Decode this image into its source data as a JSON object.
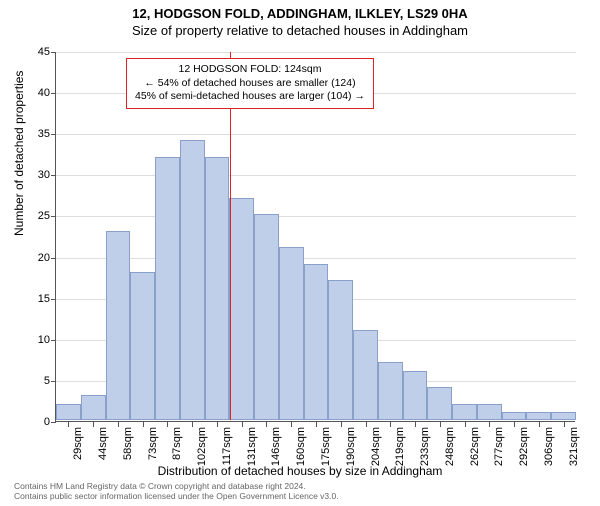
{
  "titles": {
    "line1": "12, HODGSON FOLD, ADDINGHAM, ILKLEY, LS29 0HA",
    "line2": "Size of property relative to detached houses in Addingham"
  },
  "y_axis": {
    "title": "Number of detached properties",
    "min": 0,
    "max": 45,
    "step": 5,
    "ticks": [
      0,
      5,
      10,
      15,
      20,
      25,
      30,
      35,
      40,
      45
    ]
  },
  "x_axis": {
    "title": "Distribution of detached houses by size in Addingham",
    "labels": [
      "29sqm",
      "44sqm",
      "58sqm",
      "73sqm",
      "87sqm",
      "102sqm",
      "117sqm",
      "131sqm",
      "146sqm",
      "160sqm",
      "175sqm",
      "190sqm",
      "204sqm",
      "219sqm",
      "233sqm",
      "248sqm",
      "262sqm",
      "277sqm",
      "292sqm",
      "306sqm",
      "321sqm"
    ]
  },
  "histogram": {
    "type": "histogram",
    "values": [
      2,
      3,
      23,
      18,
      32,
      34,
      32,
      27,
      25,
      21,
      19,
      17,
      11,
      7,
      6,
      4,
      2,
      2,
      1,
      1,
      1
    ],
    "bar_fill": "#bfcfea",
    "bar_border": "#8aa0c8",
    "grid_color": "#dddddd",
    "background": "#ffffff"
  },
  "reference": {
    "value_sqm": 124,
    "color": "#d22",
    "box": {
      "line1": "12 HODGSON FOLD: 124sqm",
      "line2": "← 54% of detached houses are smaller (124)",
      "line3": "45% of semi-detached houses are larger (104) →"
    }
  },
  "footer": {
    "line1": "Contains HM Land Registry data © Crown copyright and database right 2024.",
    "line2": "Contains public sector information licensed under the Open Government Licence v3.0."
  }
}
